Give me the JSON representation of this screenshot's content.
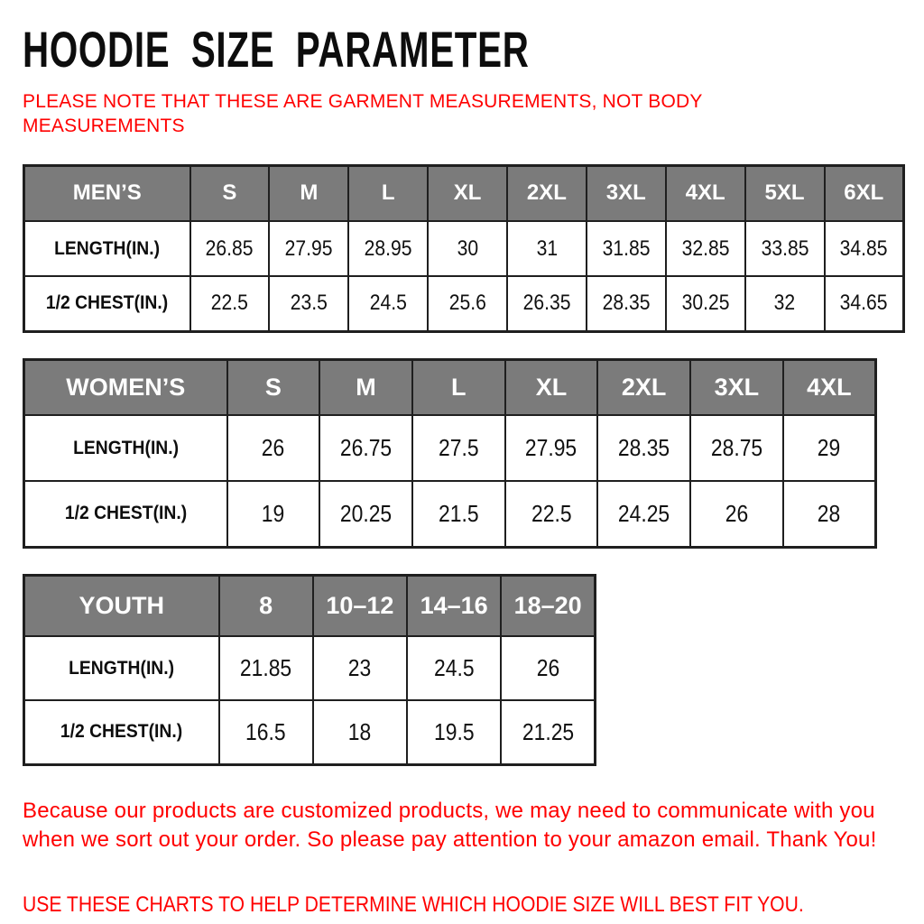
{
  "texts": {
    "title": "HOODIE SIZE PARAMETER",
    "note": "PLEASE NOTE THAT THESE ARE GARMENT MEASUREMENTS, NOT BODY\nMEASUREMENTS",
    "footer_para": "Because our products are customized products, we may need to communicate with you\nwhen we sort out your order. So please pay attention to your amazon email. Thank You!",
    "footer_caps": "USE THESE CHARTS TO HELP DETERMINE WHICH HOODIE SIZE WILL BEST FIT YOU."
  },
  "colors": {
    "accent_red": "#ff0000",
    "header_gray": "#7b7b7b",
    "grid_border": "#1f1f1f",
    "text_black": "#111111",
    "background": "#ffffff"
  },
  "tables": [
    {
      "name": "mens",
      "header": [
        "MEN’S",
        "S",
        "M",
        "L",
        "XL",
        "2XL",
        "3XL",
        "4XL",
        "5XL",
        "6XL"
      ],
      "rows": [
        {
          "label": "LENGTH(IN.)",
          "values": [
            "26.85",
            "27.95",
            "28.95",
            "30",
            "31",
            "31.85",
            "32.85",
            "33.85",
            "34.85"
          ]
        },
        {
          "label": "1/2 CHEST(IN.)",
          "values": [
            "22.5",
            "23.5",
            "24.5",
            "25.6",
            "26.35",
            "28.35",
            "30.25",
            "32",
            "34.65"
          ]
        }
      ]
    },
    {
      "name": "womens",
      "header": [
        "WOMEN’S",
        "S",
        "M",
        "L",
        "XL",
        "2XL",
        "3XL",
        "4XL"
      ],
      "rows": [
        {
          "label": "LENGTH(IN.)",
          "values": [
            "26",
            "26.75",
            "27.5",
            "27.95",
            "28.35",
            "28.75",
            "29"
          ]
        },
        {
          "label": "1/2 CHEST(IN.)",
          "values": [
            "19",
            "20.25",
            "21.5",
            "22.5",
            "24.25",
            "26",
            "28"
          ]
        }
      ]
    },
    {
      "name": "youth",
      "header": [
        "YOUTH",
        "8",
        "10–12",
        "14–16",
        "18–20"
      ],
      "rows": [
        {
          "label": "LENGTH(IN.)",
          "values": [
            "21.85",
            "23",
            "24.5",
            "26"
          ]
        },
        {
          "label": "1/2 CHEST(IN.)",
          "values": [
            "16.5",
            "18",
            "19.5",
            "21.25"
          ]
        }
      ]
    }
  ]
}
